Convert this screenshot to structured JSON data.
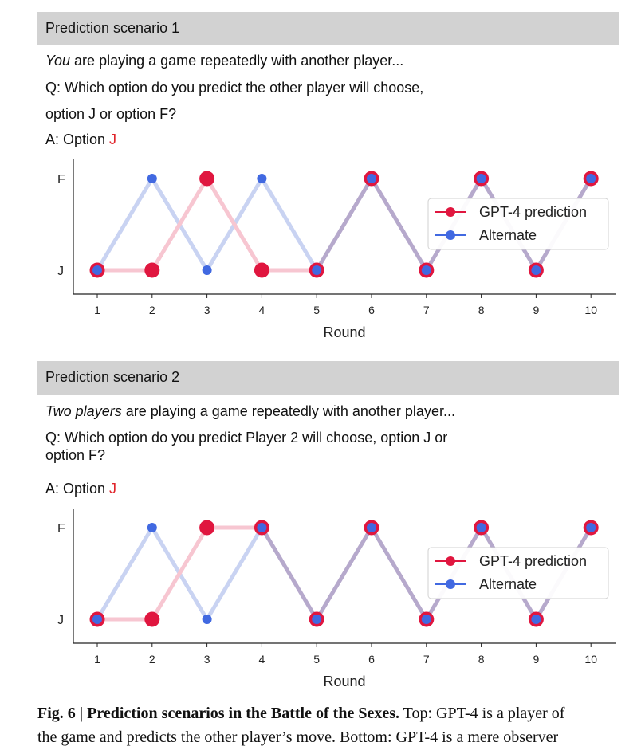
{
  "scenario1": {
    "header": "Prediction scenario 1",
    "prompt_em": "You",
    "prompt_rest": " are playing a game repeatedly with another player...",
    "question_line1": "Q: Which option do you predict the other player will choose,",
    "question_line2": "option J or option F?",
    "answer_prefix": "A: Option ",
    "answer_value": "J"
  },
  "scenario2": {
    "header": "Prediction scenario 2",
    "prompt_em": "Two players",
    "prompt_rest": " are playing a game repeatedly with another player...",
    "question_line1": "Q: Which option do you predict Player 2 will choose, option J or",
    "question_line2": "option F?",
    "answer_prefix": "A: Option ",
    "answer_value": "J"
  },
  "caption": {
    "label": "Fig. 6 | Prediction scenarios in the Battle of the Sexes.",
    "text_line1": " Top: GPT-4 is a player of",
    "text_line2": "the game and predicts the other player’s move. Bottom: GPT-4 is a mere observer"
  },
  "colors": {
    "prediction": "#e0163f",
    "alternate": "#4169e1",
    "prediction_line": "#f7c6d1",
    "alternate_line": "#c9d3f2",
    "overlap_line": "#b6a9cc",
    "answer": "#e0252b"
  },
  "chart_data": [
    {
      "type": "line",
      "title": "",
      "xlabel": "Round",
      "ylabel": "",
      "x": [
        1,
        2,
        3,
        4,
        5,
        6,
        7,
        8,
        9,
        10
      ],
      "y_categories": [
        "J",
        "F"
      ],
      "series": [
        {
          "name": "GPT-4 prediction",
          "values": [
            "J",
            "J",
            "F",
            "J",
            "J",
            "F",
            "J",
            "F",
            "J",
            "F"
          ]
        },
        {
          "name": "Alternate",
          "values": [
            "J",
            "F",
            "J",
            "F",
            "J",
            "F",
            "J",
            "F",
            "J",
            "F"
          ]
        }
      ],
      "legend": "right"
    },
    {
      "type": "line",
      "title": "",
      "xlabel": "Round",
      "ylabel": "",
      "x": [
        1,
        2,
        3,
        4,
        5,
        6,
        7,
        8,
        9,
        10
      ],
      "y_categories": [
        "J",
        "F"
      ],
      "series": [
        {
          "name": "GPT-4 prediction",
          "values": [
            "J",
            "J",
            "F",
            "F",
            "J",
            "F",
            "J",
            "F",
            "J",
            "F"
          ]
        },
        {
          "name": "Alternate",
          "values": [
            "J",
            "F",
            "J",
            "F",
            "J",
            "F",
            "J",
            "F",
            "J",
            "F"
          ]
        }
      ],
      "legend": "right"
    }
  ]
}
